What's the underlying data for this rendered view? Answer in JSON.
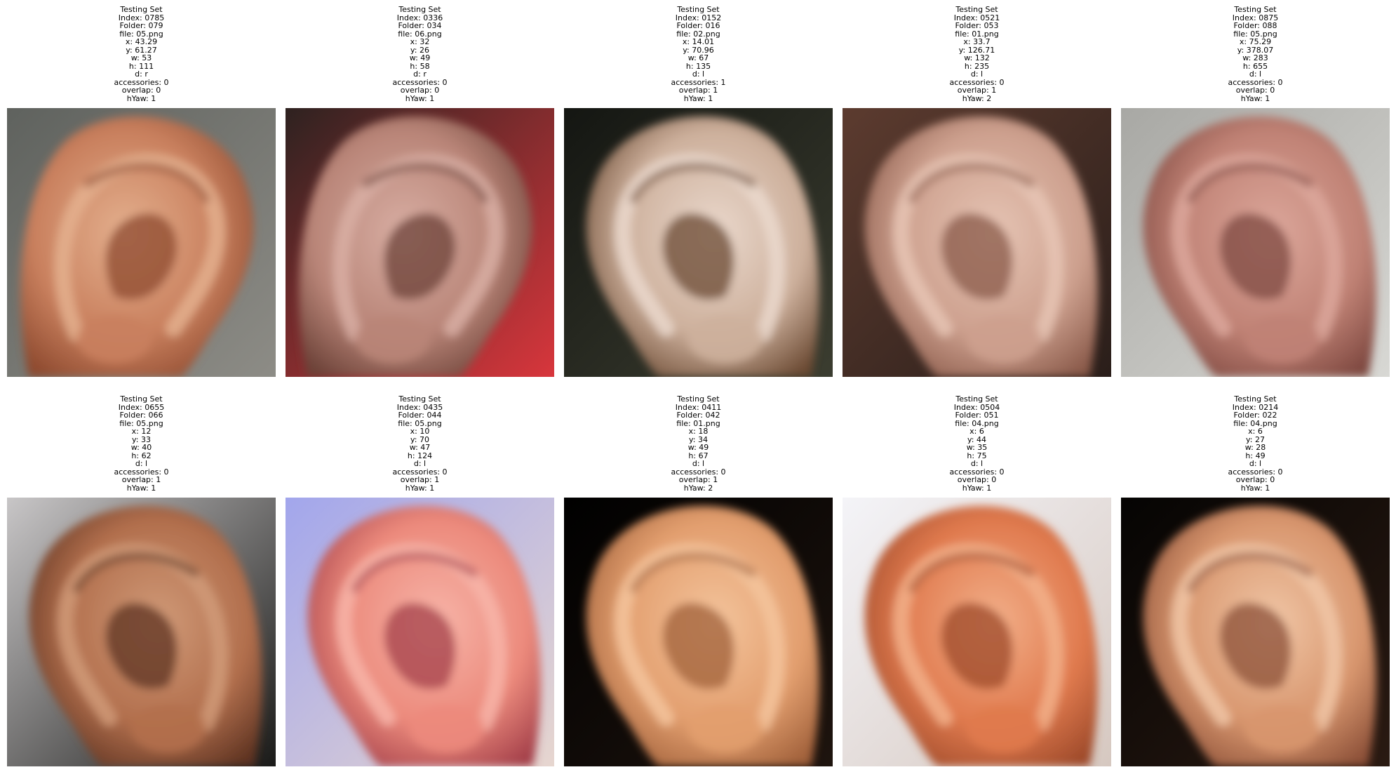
{
  "figure": {
    "panels": [
      {
        "lines": [
          "Testing Set",
          "Index: 0785",
          "Folder: 079",
          "file: 05.png",
          "x: 43.29",
          "y: 61.27",
          "w: 53",
          "h: 111",
          "d: r",
          "accessories: 0",
          "overlap: 0",
          "hYaw: 1"
        ],
        "skin": "#c9805e",
        "shade": "#8e4a2f",
        "highlight": "#e4b08e",
        "bg": "#5f625e",
        "bg2": "#8d8c86",
        "mirror": false
      },
      {
        "lines": [
          "Testing Set",
          "Index: 0336",
          "Folder: 034",
          "file: 06.png",
          "x: 32",
          "y: 26",
          "w: 49",
          "h: 58",
          "d: r",
          "accessories: 0",
          "overlap: 0",
          "hYaw: 1"
        ],
        "skin": "#b98578",
        "shade": "#6c4238",
        "highlight": "#d8aea3",
        "bg": "#2e2220",
        "bg2": "#d8363c",
        "mirror": false
      },
      {
        "lines": [
          "Testing Set",
          "Index: 0152",
          "Folder: 016",
          "file: 02.png",
          "x: 14.01",
          "y: 70.96",
          "w: 67",
          "h: 135",
          "d: l",
          "accessories: 1",
          "overlap: 1",
          "hYaw: 1"
        ],
        "skin": "#cdb09c",
        "shade": "#6b4a33",
        "highlight": "#ead8cc",
        "bg": "#141612",
        "bg2": "#3b3d30",
        "mirror": true
      },
      {
        "lines": [
          "Testing Set",
          "Index: 0521",
          "Folder: 053",
          "file: 01.png",
          "x: 33.7",
          "y: 126.71",
          "w: 132",
          "h: 235",
          "d: l",
          "accessories: 0",
          "overlap: 1",
          "hYaw: 2"
        ],
        "skin": "#cda08e",
        "shade": "#8a5a4a",
        "highlight": "#e6c4b4",
        "bg": "#5c3b2f",
        "bg2": "#2a1e1a",
        "mirror": true
      },
      {
        "lines": [
          "Testing Set",
          "Index: 0875",
          "Folder: 088",
          "file: 05.png",
          "x: 75.29",
          "y: 378.07",
          "w: 283",
          "h: 655",
          "d: l",
          "accessories: 0",
          "overlap: 0",
          "hYaw: 1"
        ],
        "skin": "#c08275",
        "shade": "#7e4840",
        "highlight": "#dca79b",
        "bg": "#a8a8a4",
        "bg2": "#d8d8d4",
        "mirror": true
      },
      {
        "lines": [
          "Testing Set",
          "Index: 0655",
          "Folder: 066",
          "file: 05.png",
          "x: 12",
          "y: 33",
          "w: 40",
          "h: 62",
          "d: l",
          "accessories: 0",
          "overlap: 1",
          "hYaw: 1"
        ],
        "skin": "#b26f4d",
        "shade": "#5e3321",
        "highlight": "#d09a78",
        "bg": "#c8c6c7",
        "bg2": "#1a1a18",
        "mirror": true
      },
      {
        "lines": [
          "Testing Set",
          "Index: 0435",
          "Folder: 044",
          "file: 05.png",
          "x: 10",
          "y: 70",
          "w: 47",
          "h: 124",
          "d: l",
          "accessories: 0",
          "overlap: 1",
          "hYaw: 1"
        ],
        "skin": "#ec8a7c",
        "shade": "#a4404a",
        "highlight": "#f7b4a8",
        "bg": "#a2a6ec",
        "bg2": "#e7d6cf",
        "mirror": true
      },
      {
        "lines": [
          "Testing Set",
          "Index: 0411",
          "Folder: 042",
          "file: 01.png",
          "x: 18",
          "y: 34",
          "w: 49",
          "h: 67",
          "d: l",
          "accessories: 0",
          "overlap: 1",
          "hYaw: 2"
        ],
        "skin": "#e29e6e",
        "shade": "#a0603a",
        "highlight": "#f4c49c",
        "bg": "#000000",
        "bg2": "#1e140e",
        "mirror": true
      },
      {
        "lines": [
          "Testing Set",
          "Index: 0504",
          "Folder: 051",
          "file: 04.png",
          "x: 6",
          "y: 44",
          "w: 35",
          "h: 75",
          "d: l",
          "accessories: 0",
          "overlap: 0",
          "hYaw: 1"
        ],
        "skin": "#e07a4e",
        "shade": "#9e4a2a",
        "highlight": "#f2b08a",
        "bg": "#f4f4f8",
        "bg2": "#d6c8c0",
        "mirror": true
      },
      {
        "lines": [
          "Testing Set",
          "Index: 0214",
          "Folder: 022",
          "file: 04.png",
          "x: 6",
          "y: 27",
          "w: 28",
          "h: 49",
          "d: l",
          "accessories: 0",
          "overlap: 0",
          "hYaw: 1"
        ],
        "skin": "#d8966e",
        "shade": "#8c5038",
        "highlight": "#f0c6a6",
        "bg": "#050403",
        "bg2": "#2a1a12",
        "mirror": true
      }
    ]
  }
}
